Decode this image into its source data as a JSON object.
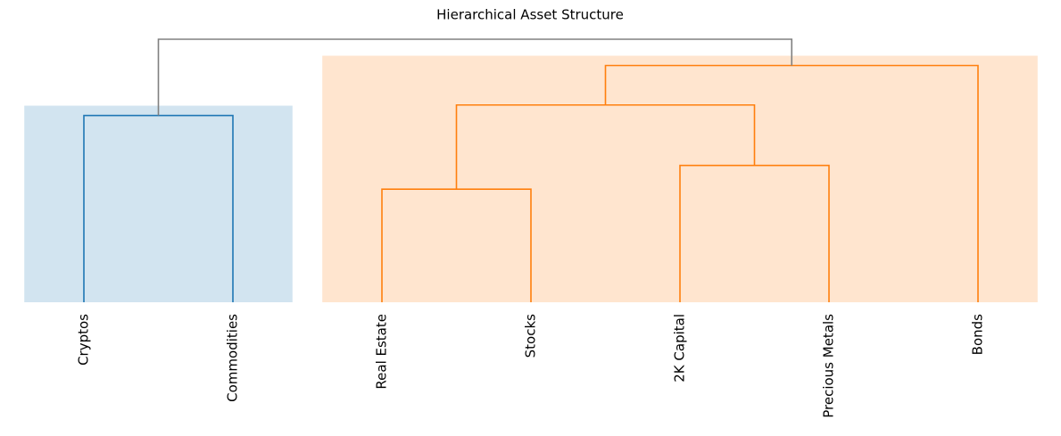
{
  "chart_data": {
    "type": "dendrogram",
    "title": "Hierarchical Asset Structure",
    "leaves": [
      "Cryptos",
      "Commodities",
      "Real Estate",
      "Stocks",
      "2K Capital",
      "Precious Metals",
      "Bonds"
    ],
    "merges": [
      {
        "children": [
          0,
          1
        ],
        "height": 7.1,
        "color": "#1f77b4"
      },
      {
        "children": [
          2,
          3
        ],
        "height": 4.3,
        "color": "#ff7f0e"
      },
      {
        "children": [
          4,
          5
        ],
        "height": 5.2,
        "color": "#ff7f0e"
      },
      {
        "children": [
          8,
          9
        ],
        "height": 7.5,
        "color": "#ff7f0e"
      },
      {
        "children": [
          10,
          6
        ],
        "height": 9.0,
        "color": "#ff7f0e"
      },
      {
        "children": [
          7,
          11
        ],
        "height": 10.0,
        "color": "#808080"
      }
    ]
  }
}
